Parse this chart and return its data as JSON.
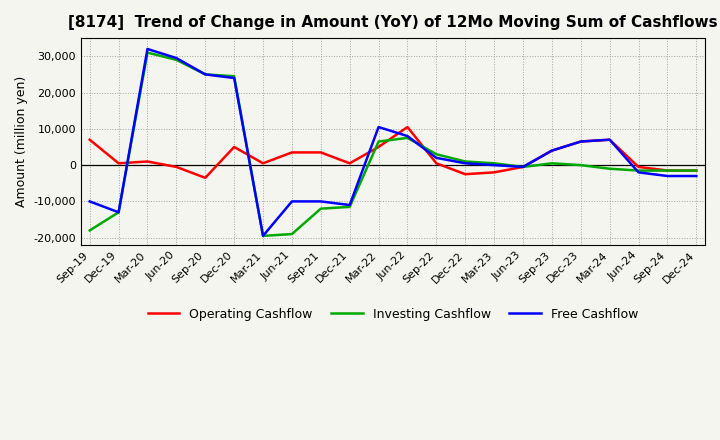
{
  "title": "[8174]  Trend of Change in Amount (YoY) of 12Mo Moving Sum of Cashflows",
  "ylabel": "Amount (million yen)",
  "x_labels": [
    "Sep-19",
    "Dec-19",
    "Mar-20",
    "Jun-20",
    "Sep-20",
    "Dec-20",
    "Mar-21",
    "Jun-21",
    "Sep-21",
    "Dec-21",
    "Mar-22",
    "Jun-22",
    "Sep-22",
    "Dec-22",
    "Mar-23",
    "Jun-23",
    "Sep-23",
    "Dec-23",
    "Mar-24",
    "Jun-24",
    "Sep-24",
    "Dec-24"
  ],
  "operating_cashflow": [
    7000,
    500,
    1000,
    -500,
    -3500,
    5000,
    500,
    3500,
    3500,
    500,
    5000,
    10500,
    500,
    -2500,
    -2000,
    -500,
    4000,
    6500,
    7000,
    -500,
    -1500,
    -1500
  ],
  "investing_cashflow": [
    -18000,
    -13000,
    31000,
    29000,
    25000,
    24500,
    -19500,
    -19000,
    -12000,
    -11500,
    6500,
    7500,
    3000,
    1000,
    500,
    -500,
    500,
    0,
    -1000,
    -1500,
    -1500,
    -1500
  ],
  "free_cashflow": [
    -10000,
    -13000,
    32000,
    29500,
    25000,
    24000,
    -19500,
    -10000,
    -10000,
    -11000,
    10500,
    8000,
    2000,
    500,
    0,
    -500,
    4000,
    6500,
    7000,
    -2000,
    -3000,
    -3000
  ],
  "operating_color": "#ff0000",
  "investing_color": "#00aa00",
  "free_color": "#0000ff",
  "ylim": [
    -22000,
    35000
  ],
  "yticks": [
    -20000,
    -10000,
    0,
    10000,
    20000,
    30000
  ],
  "bg_color": "#f5f5f0",
  "plot_bg": "#f5f5f0",
  "grid_color": "#999999",
  "line_width": 1.8,
  "title_fontsize": 11,
  "label_fontsize": 8,
  "ylabel_fontsize": 9
}
